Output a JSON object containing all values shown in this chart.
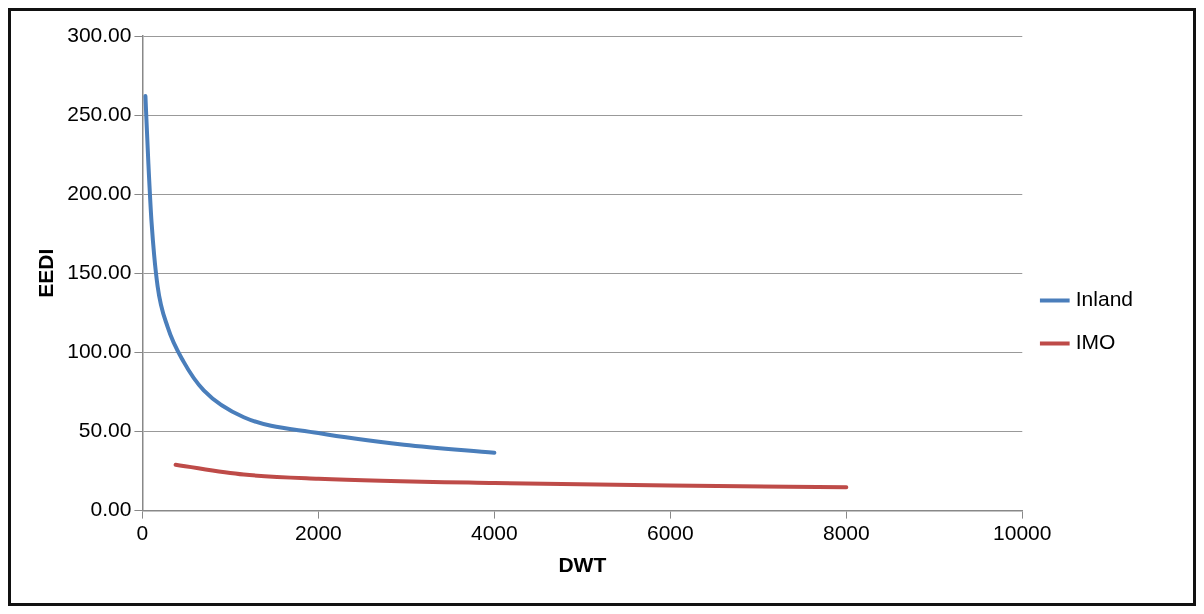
{
  "chart_data": {
    "type": "line",
    "xlabel": "DWT",
    "ylabel": "EEDI",
    "xlim": [
      0,
      10000
    ],
    "xticks": [
      0,
      2000,
      4000,
      6000,
      8000,
      10000
    ],
    "ylim": [
      0,
      300
    ],
    "yticks": [
      {
        "value": 0,
        "label": "0.00"
      },
      {
        "value": 50,
        "label": "50.00"
      },
      {
        "value": 100,
        "label": "100.00"
      },
      {
        "value": 150,
        "label": "150.00"
      },
      {
        "value": 200,
        "label": "200.00"
      },
      {
        "value": 250,
        "label": "250.00"
      },
      {
        "value": 300,
        "label": "300.00"
      }
    ],
    "grid": "y",
    "legend": "right",
    "marker": "none",
    "line_style": "solid",
    "series": [
      {
        "name": "Inland",
        "color": "#4a7ebb",
        "x": [
          34,
          68,
          104,
          172,
          287,
          469,
          697,
          1152,
          2000,
          2973,
          4000
        ],
        "values": [
          262,
          219,
          182,
          142,
          116,
          94,
          76,
          59,
          49,
          41.6,
          36.5
        ]
      },
      {
        "name": "IMO",
        "color": "#be4b48",
        "x": [
          377,
          1152,
          2000,
          4000,
          6000,
          8000
        ],
        "values": [
          29,
          22.8,
          20.2,
          17.4,
          15.8,
          14.7
        ]
      }
    ]
  }
}
